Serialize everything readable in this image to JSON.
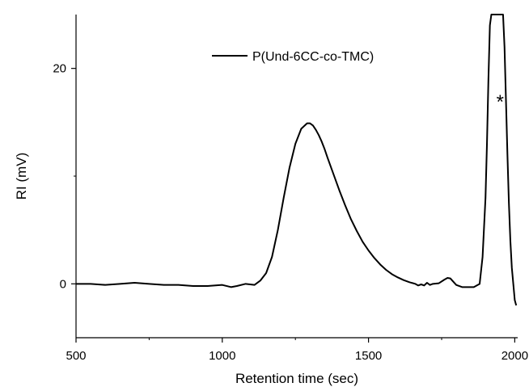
{
  "chart_data": {
    "type": "line",
    "xlabel": "Retention time (sec)",
    "ylabel": "RI (mV)",
    "xlim": [
      500,
      2010
    ],
    "ylim": [
      -5,
      25
    ],
    "xticks": [
      500,
      1000,
      1500,
      2000
    ],
    "yticks": [
      0,
      20
    ],
    "grid": false,
    "legend": {
      "position": "top-center"
    },
    "series": [
      {
        "name": "P(Und-6CC-co-TMC)",
        "color": "#000000",
        "x": [
          500,
          550,
          600,
          650,
          700,
          750,
          800,
          850,
          900,
          950,
          1000,
          1030,
          1050,
          1080,
          1110,
          1130,
          1150,
          1170,
          1190,
          1210,
          1230,
          1250,
          1270,
          1290,
          1300,
          1310,
          1320,
          1330,
          1340,
          1350,
          1360,
          1380,
          1400,
          1420,
          1440,
          1460,
          1480,
          1500,
          1520,
          1540,
          1560,
          1580,
          1600,
          1620,
          1640,
          1660,
          1670,
          1680,
          1690,
          1700,
          1710,
          1720,
          1740,
          1760,
          1770,
          1780,
          1790,
          1800,
          1820,
          1840,
          1860,
          1880,
          1890,
          1900,
          1905,
          1910,
          1915,
          1920,
          1925,
          1930,
          1935,
          1940,
          1945,
          1950,
          1955,
          1960,
          1965,
          1970,
          1975,
          1980,
          1985,
          1990,
          1995,
          2000,
          2005
        ],
        "y": [
          0.0,
          0.0,
          -0.1,
          0.0,
          0.1,
          0.0,
          -0.1,
          -0.1,
          -0.2,
          -0.2,
          -0.1,
          -0.3,
          -0.2,
          0.0,
          -0.1,
          0.3,
          1.0,
          2.5,
          5.0,
          8.0,
          10.8,
          13.0,
          14.4,
          14.9,
          14.9,
          14.7,
          14.3,
          13.8,
          13.2,
          12.5,
          11.7,
          10.2,
          8.7,
          7.3,
          6.0,
          4.9,
          3.9,
          3.1,
          2.4,
          1.8,
          1.3,
          0.9,
          0.6,
          0.35,
          0.15,
          0.0,
          -0.15,
          -0.05,
          -0.15,
          0.1,
          -0.1,
          0.0,
          0.05,
          0.4,
          0.55,
          0.5,
          0.2,
          -0.1,
          -0.3,
          -0.3,
          -0.3,
          0.0,
          2.5,
          8.0,
          13.0,
          19.0,
          24.0,
          25.0,
          25.0,
          25.0,
          25.0,
          25.0,
          25.0,
          25.0,
          25.0,
          25.0,
          22.0,
          17.0,
          12.0,
          7.5,
          4.0,
          1.5,
          0.0,
          -1.5,
          -2.0
        ]
      }
    ],
    "annotations": [
      {
        "text": "*",
        "x": 1950,
        "y": 17.2
      }
    ]
  }
}
